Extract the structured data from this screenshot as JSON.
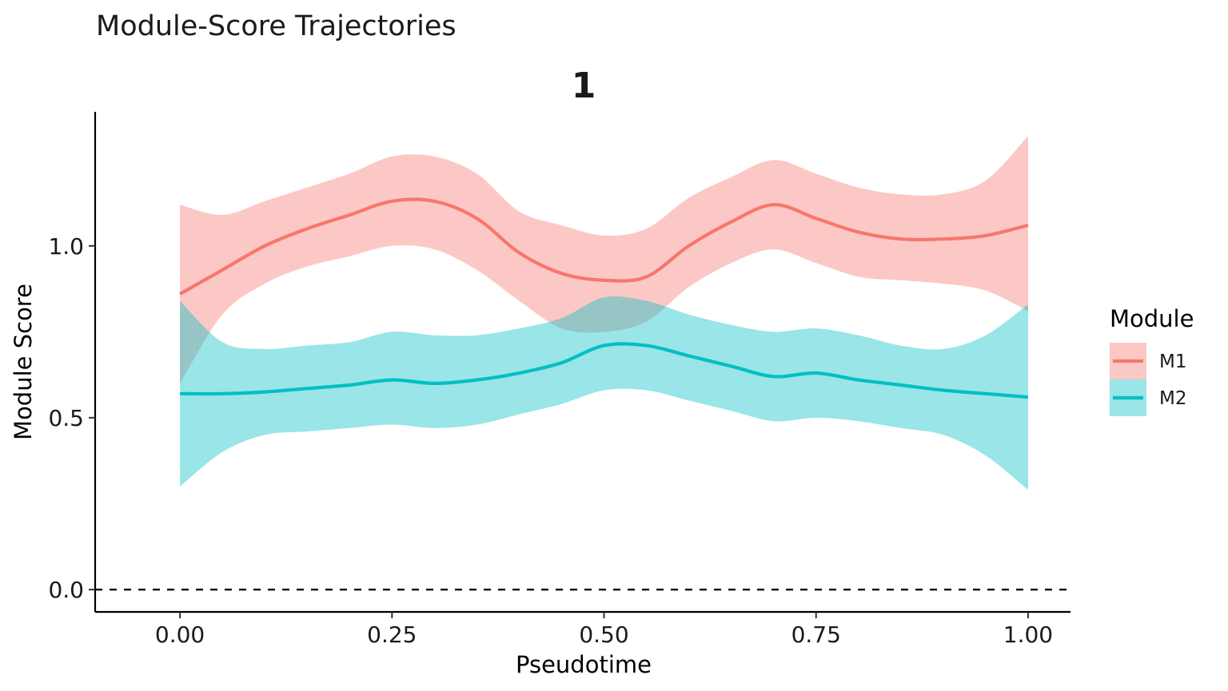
{
  "chart_data": {
    "type": "line",
    "title": "Module-Score Trajectories",
    "facet_label": "1",
    "xlabel": "Pseudotime",
    "ylabel": "Module Score",
    "xlim": [
      -0.1,
      1.05
    ],
    "ylim": [
      -0.065,
      1.39
    ],
    "x_ticks": [
      0.0,
      0.25,
      0.5,
      0.75,
      1.0
    ],
    "x_tick_labels": [
      "0.00",
      "0.25",
      "0.50",
      "0.75",
      "1.00"
    ],
    "y_ticks": [
      0.0,
      0.5,
      1.0
    ],
    "y_tick_labels": [
      "0.0",
      "0.5",
      "1.0"
    ],
    "reference_line": {
      "y": 0.0,
      "style": "dashed",
      "color": "#000000"
    },
    "grid": false,
    "legend": {
      "title": "Module",
      "position": "right"
    },
    "series": [
      {
        "name": "M1",
        "color": "#F8766D",
        "ribbon_color": "#F8766D",
        "x": [
          0.0,
          0.05,
          0.1,
          0.15,
          0.2,
          0.25,
          0.3,
          0.35,
          0.4,
          0.45,
          0.5,
          0.55,
          0.6,
          0.65,
          0.7,
          0.75,
          0.8,
          0.85,
          0.9,
          0.95,
          1.0
        ],
        "y": [
          0.86,
          0.93,
          1.0,
          1.05,
          1.09,
          1.13,
          1.13,
          1.08,
          0.98,
          0.92,
          0.9,
          0.91,
          1.0,
          1.07,
          1.12,
          1.08,
          1.04,
          1.02,
          1.02,
          1.03,
          1.06
        ],
        "lower": [
          0.6,
          0.8,
          0.89,
          0.94,
          0.97,
          1.0,
          0.99,
          0.93,
          0.84,
          0.76,
          0.75,
          0.78,
          0.88,
          0.95,
          0.99,
          0.95,
          0.91,
          0.9,
          0.89,
          0.87,
          0.81
        ],
        "upper": [
          1.12,
          1.09,
          1.13,
          1.17,
          1.21,
          1.26,
          1.26,
          1.21,
          1.1,
          1.06,
          1.03,
          1.05,
          1.14,
          1.2,
          1.25,
          1.21,
          1.17,
          1.15,
          1.15,
          1.19,
          1.32
        ]
      },
      {
        "name": "M2",
        "color": "#00BFC4",
        "ribbon_color": "#00BFC4",
        "x": [
          0.0,
          0.05,
          0.1,
          0.15,
          0.2,
          0.25,
          0.3,
          0.35,
          0.4,
          0.45,
          0.5,
          0.55,
          0.6,
          0.65,
          0.7,
          0.75,
          0.8,
          0.85,
          0.9,
          0.95,
          1.0
        ],
        "y": [
          0.57,
          0.57,
          0.575,
          0.585,
          0.595,
          0.61,
          0.6,
          0.61,
          0.63,
          0.66,
          0.71,
          0.71,
          0.68,
          0.65,
          0.62,
          0.63,
          0.61,
          0.595,
          0.58,
          0.57,
          0.56
        ],
        "lower": [
          0.3,
          0.4,
          0.45,
          0.46,
          0.47,
          0.48,
          0.47,
          0.48,
          0.51,
          0.54,
          0.58,
          0.58,
          0.55,
          0.52,
          0.49,
          0.5,
          0.49,
          0.47,
          0.45,
          0.39,
          0.29
        ],
        "upper": [
          0.84,
          0.72,
          0.7,
          0.71,
          0.72,
          0.75,
          0.74,
          0.74,
          0.76,
          0.79,
          0.85,
          0.84,
          0.8,
          0.77,
          0.75,
          0.76,
          0.74,
          0.71,
          0.7,
          0.74,
          0.83
        ]
      }
    ]
  }
}
